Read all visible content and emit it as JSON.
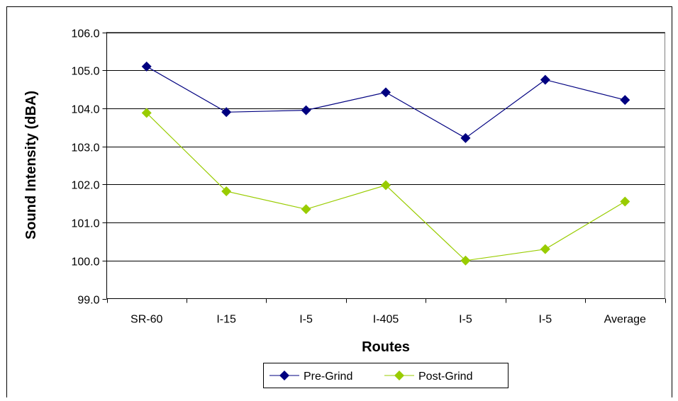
{
  "chart_data": {
    "type": "line",
    "title": "",
    "xlabel": "Routes",
    "ylabel": "Sound Intensity (dBA)",
    "categories": [
      "SR-60",
      "I-15",
      "I-5",
      "I-405",
      "I-5",
      "I-5",
      "Average"
    ],
    "ylim": [
      99.0,
      106.0
    ],
    "yticks": [
      "99.0",
      "100.0",
      "101.0",
      "102.0",
      "103.0",
      "104.0",
      "105.0",
      "106.0"
    ],
    "grid": true,
    "legend_position": "bottom",
    "series": [
      {
        "name": "Pre-Grind",
        "color": "#000080",
        "marker": "diamond",
        "values": [
          105.1,
          103.9,
          103.95,
          104.42,
          103.22,
          104.75,
          104.22
        ]
      },
      {
        "name": "Post-Grind",
        "color": "#99CC00",
        "marker": "diamond",
        "values": [
          103.88,
          101.82,
          101.35,
          101.98,
          100.0,
          100.3,
          101.55
        ]
      }
    ]
  }
}
